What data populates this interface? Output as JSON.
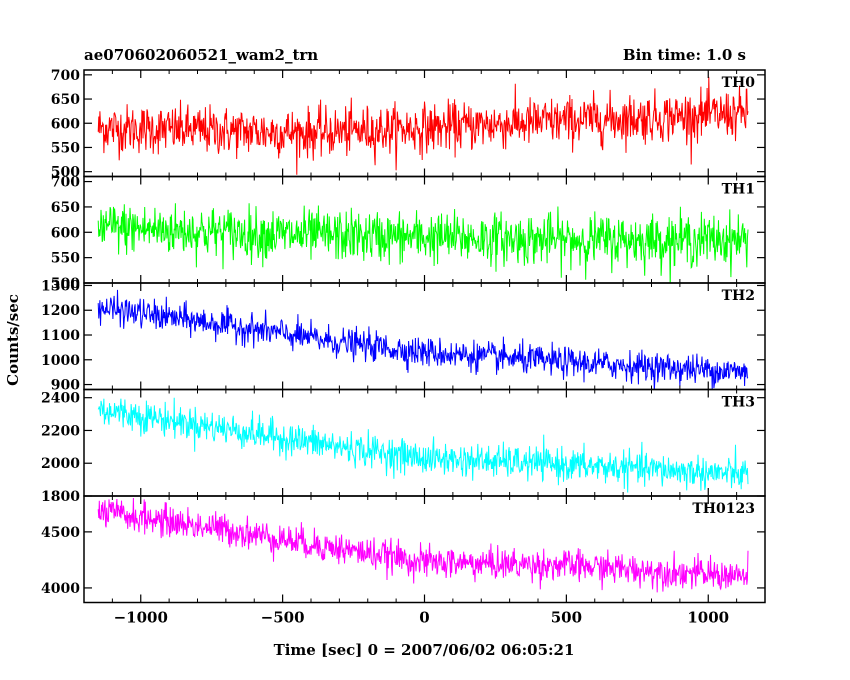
{
  "chart_data": {
    "type": "line",
    "title": "ae070602060521_wam2_trn",
    "subtitle": "Bin time: 1.0 s",
    "xlabel": "Time [sec] 0 = 2007/06/02 06:05:21",
    "ylabel": "Counts/sec",
    "xlim": [
      -1200,
      1200
    ],
    "x_ticks": [
      -1000,
      -500,
      0,
      500,
      1000
    ],
    "x_tick_labels": [
      "−1000",
      "−500",
      "0",
      "500",
      "1000"
    ],
    "x_range": [
      -1150,
      1140
    ],
    "bin_time_s": 1.0,
    "grid": false,
    "legend": "none",
    "panels": [
      {
        "name": "TH0",
        "color": "#ff0000",
        "ylim": [
          490,
          710
        ],
        "yticks": [
          500,
          550,
          600,
          650,
          700
        ],
        "trend": [
          [
            -1150,
            590
          ],
          [
            -400,
            580
          ],
          [
            0,
            590
          ],
          [
            500,
            605
          ],
          [
            1140,
            620
          ]
        ],
        "noise_sd": 25
      },
      {
        "name": "TH1",
        "color": "#00ff00",
        "ylim": [
          500,
          710
        ],
        "yticks": [
          500,
          550,
          600,
          650,
          700
        ],
        "trend": [
          [
            -1150,
            610
          ],
          [
            -500,
            595
          ],
          [
            0,
            590
          ],
          [
            500,
            585
          ],
          [
            1140,
            585
          ]
        ],
        "noise_sd": 25
      },
      {
        "name": "TH2",
        "color": "#0000ff",
        "ylim": [
          880,
          1310
        ],
        "yticks": [
          900,
          1000,
          1100,
          1200,
          1300
        ],
        "trend": [
          [
            -1150,
            1210
          ],
          [
            -700,
            1140
          ],
          [
            -300,
            1070
          ],
          [
            0,
            1030
          ],
          [
            500,
            990
          ],
          [
            1140,
            950
          ]
        ],
        "noise_sd": 30
      },
      {
        "name": "TH3",
        "color": "#00ffff",
        "ylim": [
          1800,
          2450
        ],
        "yticks": [
          1800,
          2000,
          2200,
          2400
        ],
        "trend": [
          [
            -1150,
            2330
          ],
          [
            -700,
            2210
          ],
          [
            -300,
            2100
          ],
          [
            0,
            2030
          ],
          [
            500,
            1990
          ],
          [
            1140,
            1930
          ]
        ],
        "noise_sd": 50
      },
      {
        "name": "TH0123",
        "color": "#ff00ff",
        "ylim": [
          3870,
          4820
        ],
        "yticks": [
          4000,
          4500
        ],
        "trend": [
          [
            -1150,
            4680
          ],
          [
            -700,
            4520
          ],
          [
            -300,
            4350
          ],
          [
            0,
            4230
          ],
          [
            500,
            4200
          ],
          [
            1140,
            4100
          ]
        ],
        "noise_sd": 70
      }
    ]
  }
}
